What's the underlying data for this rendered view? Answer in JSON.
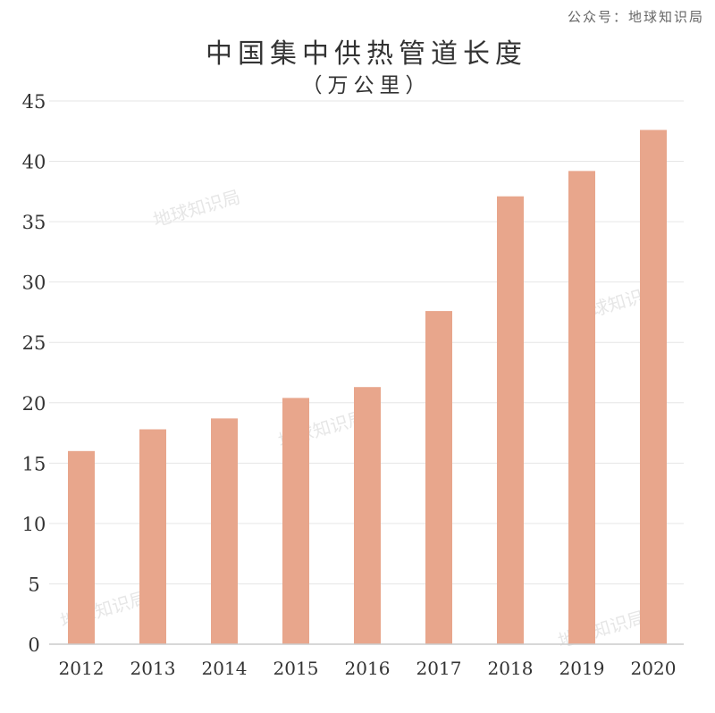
{
  "source": "公众号：地球知识局",
  "watermark_text": "地球知识局",
  "chart_data": {
    "type": "bar",
    "title": "中国集中供热管道长度",
    "subtitle": "（万公里）",
    "categories": [
      "2012",
      "2013",
      "2014",
      "2015",
      "2016",
      "2017",
      "2018",
      "2019",
      "2020"
    ],
    "values": [
      16.0,
      17.8,
      18.7,
      20.4,
      21.3,
      27.6,
      37.1,
      39.2,
      42.6
    ],
    "y_ticks": [
      0,
      5,
      10,
      15,
      20,
      25,
      30,
      35,
      40,
      45
    ],
    "ylim": [
      0,
      45
    ],
    "grid": true,
    "bar_color": "#e8a68c",
    "grid_color": "#e6e6e6",
    "axis_color": "#cccccc"
  }
}
